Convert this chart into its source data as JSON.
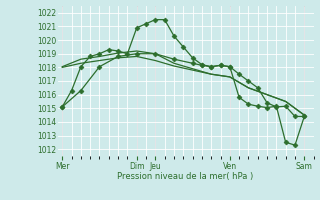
{
  "background_color": "#ceeaea",
  "grid_color": "#ffffff",
  "line_color": "#2d6e2d",
  "text_color": "#2d6e2d",
  "xlabel_text": "Pression niveau de la mer( hPa )",
  "ylim": [
    1011.5,
    1022.5
  ],
  "yticks": [
    1012,
    1013,
    1014,
    1015,
    1016,
    1017,
    1018,
    1019,
    1020,
    1021,
    1022
  ],
  "major_x_positions": [
    0,
    48,
    60,
    108,
    156
  ],
  "major_x_labels": [
    "Mer",
    "Dim",
    "Jeu",
    "Ven",
    "Sam"
  ],
  "series1_x": [
    0,
    6,
    12,
    18,
    24,
    30,
    36,
    42,
    48,
    54,
    60,
    66,
    72,
    78,
    84,
    90,
    96,
    102,
    108,
    114,
    120,
    126,
    132,
    138,
    144,
    150,
    156
  ],
  "series1_y": [
    1015.1,
    1016.3,
    1018.05,
    1018.8,
    1019.0,
    1019.3,
    1019.2,
    1019.0,
    1020.9,
    1021.2,
    1021.5,
    1021.5,
    1020.3,
    1019.5,
    1018.7,
    1018.2,
    1018.05,
    1018.15,
    1018.05,
    1017.5,
    1017.0,
    1016.5,
    1015.4,
    1015.1,
    1015.15,
    1014.4,
    1014.4
  ],
  "series2_x": [
    0,
    12,
    24,
    36,
    48,
    60,
    72,
    84,
    96,
    108,
    120,
    132,
    144,
    156
  ],
  "series2_y": [
    1018.05,
    1018.6,
    1018.8,
    1019.05,
    1019.2,
    1019.0,
    1018.3,
    1017.9,
    1017.5,
    1017.3,
    1016.5,
    1016.0,
    1015.5,
    1014.5
  ],
  "series3_x": [
    0,
    12,
    24,
    36,
    48,
    60,
    72,
    84,
    96,
    108,
    120,
    132,
    144,
    156
  ],
  "series3_y": [
    1018.0,
    1018.3,
    1018.5,
    1018.7,
    1018.8,
    1018.5,
    1018.1,
    1017.8,
    1017.5,
    1017.3,
    1016.5,
    1016.0,
    1015.5,
    1014.5
  ],
  "series4_x": [
    0,
    12,
    24,
    36,
    48,
    60,
    72,
    84,
    90,
    96,
    102,
    108,
    114,
    120,
    126,
    132,
    138,
    144,
    150,
    156
  ],
  "series4_y": [
    1015.1,
    1016.3,
    1018.05,
    1018.8,
    1019.0,
    1019.0,
    1018.6,
    1018.3,
    1018.15,
    1018.05,
    1018.15,
    1018.05,
    1015.8,
    1015.3,
    1015.15,
    1015.05,
    1015.15,
    1012.5,
    1012.3,
    1014.4
  ],
  "vline_color": "#555566",
  "vline_positions": [
    0,
    48,
    60,
    108,
    156
  ]
}
